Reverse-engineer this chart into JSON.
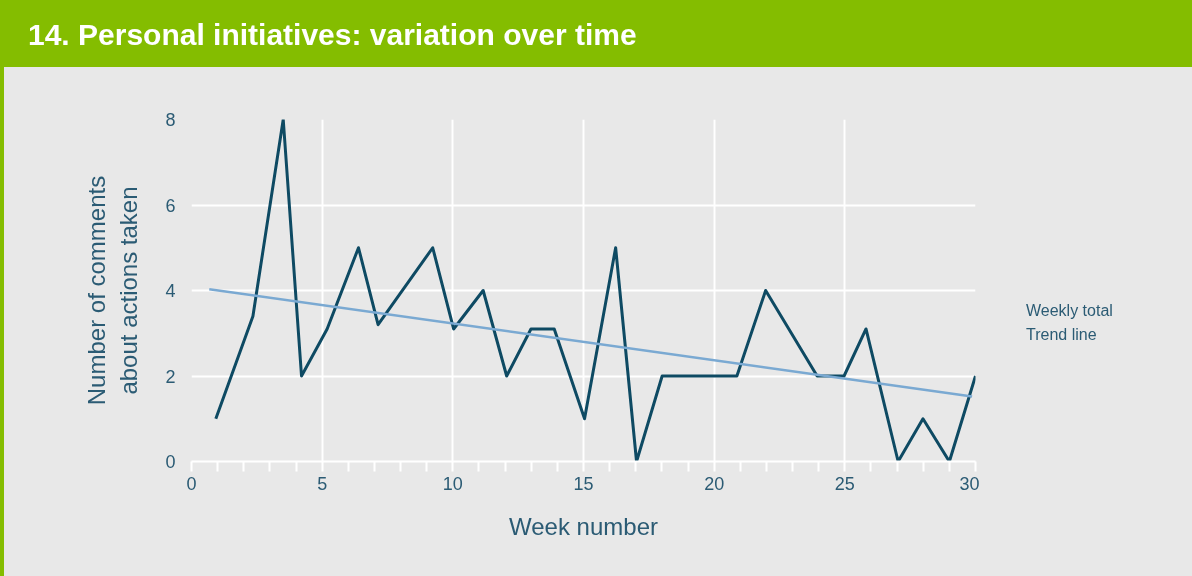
{
  "chart_data": {
    "type": "line",
    "title": "14. Personal initiatives: variation over time",
    "xlabel": "Week number",
    "ylabel": "Number of comments about actions taken",
    "xlim": [
      0,
      30
    ],
    "xticks": [
      0,
      {
        "value": 1,
        "label": null
      },
      {
        "value": 2,
        "label": null
      },
      {
        "value": 3,
        "label": null
      },
      {
        "value": 4,
        "label": null
      },
      5,
      {
        "value": 6,
        "label": null
      },
      {
        "value": 7,
        "label": null
      },
      {
        "value": 8,
        "label": null
      },
      {
        "value": 9,
        "label": null
      },
      10,
      {
        "value": 11,
        "label": null
      },
      {
        "value": 12,
        "label": null
      },
      {
        "value": 13,
        "label": null
      },
      {
        "value": 14,
        "label": null
      },
      15,
      {
        "value": 16,
        "label": null
      },
      {
        "value": 17,
        "label": null
      },
      {
        "value": 18,
        "label": null
      },
      {
        "value": 19,
        "label": null
      },
      20,
      {
        "value": 21,
        "label": null
      },
      {
        "value": 22,
        "label": null
      },
      {
        "value": 23,
        "label": null
      },
      {
        "value": 24,
        "label": null
      },
      25,
      {
        "value": 26,
        "label": null
      },
      {
        "value": 27,
        "label": null
      },
      {
        "value": 28,
        "label": null
      },
      {
        "value": 29,
        "label": null
      },
      30
    ],
    "ylim": [
      0,
      8
    ],
    "yticks": [
      0,
      2,
      4,
      6,
      8
    ],
    "grid": true,
    "legend": "right",
    "series": [
      {
        "name": "Weekly total",
        "color": "#0e4a63",
        "x": [
          0.93,
          2.35,
          3.51,
          4.21,
          5.19,
          6.39,
          7.14,
          9.23,
          10.03,
          11.16,
          12.06,
          12.99,
          13.88,
          15.04,
          16.23,
          17.03,
          18.01,
          20.87,
          21.97,
          23.94,
          24.97,
          25.81,
          27.04,
          27.99,
          29.0,
          30.0
        ],
        "values": [
          1,
          3.4,
          8,
          2,
          3.1,
          5,
          3.2,
          5,
          3.1,
          4,
          2,
          3.1,
          3.1,
          1,
          5,
          0,
          2,
          2,
          4,
          2,
          2,
          3.1,
          0,
          1,
          0,
          2
        ]
      },
      {
        "name": "Trend line",
        "color": "#7aa9d2",
        "x": [
          0.68,
          29.87
        ],
        "values": [
          4.03,
          1.52
        ]
      }
    ]
  }
}
